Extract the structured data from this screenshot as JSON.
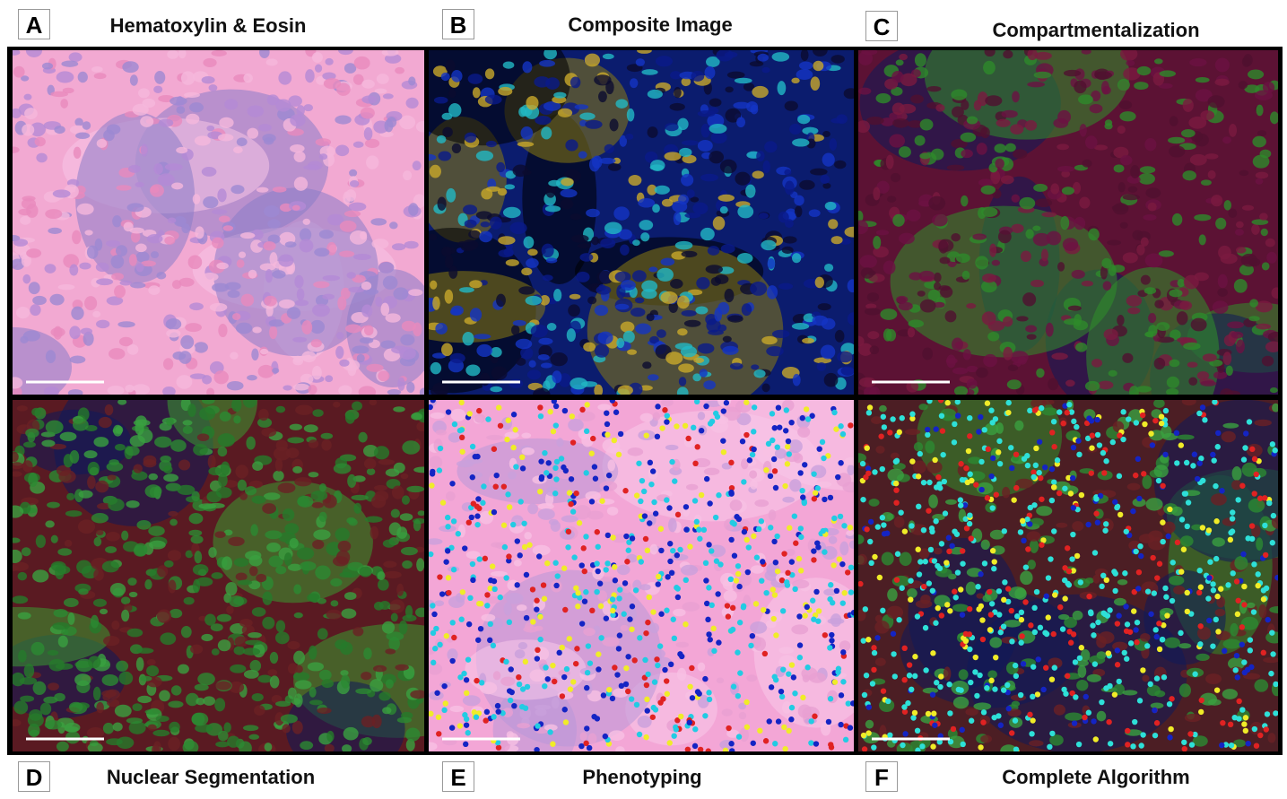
{
  "panels": [
    {
      "letter": "A",
      "title": "Hematoxylin & Eosin"
    },
    {
      "letter": "B",
      "title": "Composite Image"
    },
    {
      "letter": "C",
      "title": "Compartmentalization"
    },
    {
      "letter": "D",
      "title": "Nuclear Segmentation"
    },
    {
      "letter": "E",
      "title": "Phenotyping"
    },
    {
      "letter": "F",
      "title": "Complete Algorithm"
    }
  ]
}
